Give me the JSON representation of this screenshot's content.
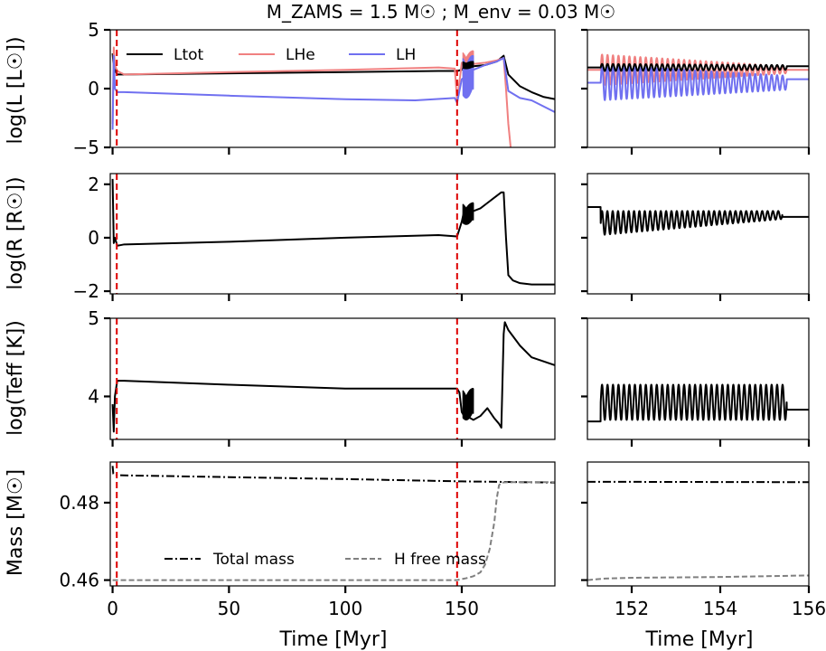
{
  "figure": {
    "title": "M_ZAMS = 1.5 M☉ ; M_env = 0.03 M☉",
    "xlabel": "Time [Myr]"
  },
  "panel_labels": {
    "lum": "log(L [L☉])",
    "rad": "log(R [R☉])",
    "teff": "log(Teff [K])",
    "mass": "Mass [M☉]"
  },
  "ticks": {
    "x_left": [
      "0",
      "50",
      "100",
      "150"
    ],
    "x_right": [
      "152",
      "154",
      "156"
    ],
    "lum": [
      "5",
      "0",
      "−5"
    ],
    "rad": [
      "2",
      "0",
      "−2"
    ],
    "teff": [
      "5",
      "4"
    ],
    "mass": [
      "0.48",
      "0.46"
    ]
  },
  "legend_lum": {
    "total": "Ltot",
    "helium": "LHe",
    "hydrogen": "LH"
  },
  "legend_mass": {
    "total": "Total mass",
    "hfree": "H free mass"
  },
  "colors": {
    "total": "#000000",
    "helium": "#f08080",
    "hydrogen": "#7070f0",
    "marker": "#dd0000",
    "hfree": "#808080"
  },
  "chart_data": [
    {
      "type": "line",
      "panel": "luminosity-full",
      "xlim": [
        -1,
        190
      ],
      "ylim": [
        -5,
        5
      ],
      "series": [
        {
          "name": "Ltot",
          "x": [
            0,
            0.5,
            1.5,
            2,
            5,
            50,
            100,
            140,
            148,
            150,
            151,
            153,
            155,
            160,
            165,
            168,
            170,
            175,
            180,
            185,
            190
          ],
          "y": [
            3.0,
            1.8,
            1.4,
            1.2,
            1.2,
            1.3,
            1.4,
            1.5,
            1.5,
            1.6,
            1.9,
            2.1,
            1.9,
            2.0,
            2.3,
            2.8,
            1.2,
            0.2,
            -0.3,
            -0.7,
            -0.9
          ]
        },
        {
          "name": "LHe",
          "x": [
            0,
            0.5,
            1,
            2,
            5,
            50,
            100,
            140,
            147,
            148,
            150,
            155,
            160,
            165,
            168,
            169,
            170,
            171
          ],
          "y": [
            -3.0,
            3.5,
            2.0,
            1.5,
            1.2,
            1.4,
            1.6,
            1.8,
            1.7,
            -1.0,
            2.2,
            2.1,
            2.2,
            2.4,
            2.6,
            0.0,
            -3.0,
            -5.0
          ]
        },
        {
          "name": "LH",
          "x": [
            0,
            0.5,
            1,
            2,
            5,
            50,
            100,
            130,
            147,
            148,
            150,
            155,
            160,
            165,
            168,
            170,
            175,
            180,
            190
          ],
          "y": [
            -3.5,
            2.8,
            0.0,
            -0.3,
            -0.3,
            -0.6,
            -0.9,
            -1.0,
            -0.8,
            -1.2,
            0.8,
            1.6,
            2.0,
            2.3,
            2.6,
            -0.2,
            -0.8,
            -1.0,
            -2.0
          ]
        }
      ],
      "markers_x": [
        1.8,
        148
      ]
    },
    {
      "type": "line",
      "panel": "radius-full",
      "xlim": [
        -1,
        190
      ],
      "ylim": [
        -2.1,
        2.4
      ],
      "series": [
        {
          "name": "R",
          "x": [
            0,
            0.5,
            1,
            2,
            5,
            50,
            100,
            140,
            148,
            150,
            151,
            153,
            155,
            158,
            161,
            164,
            167,
            168,
            169,
            170,
            172,
            175,
            180,
            190
          ],
          "y": [
            2.2,
            -0.2,
            0.0,
            -0.3,
            -0.25,
            -0.15,
            0.0,
            0.1,
            0.05,
            0.6,
            1.0,
            1.1,
            1.0,
            1.1,
            1.3,
            1.5,
            1.7,
            1.7,
            0.0,
            -1.4,
            -1.6,
            -1.7,
            -1.75,
            -1.75
          ]
        }
      ],
      "markers_x": [
        1.8,
        148
      ]
    },
    {
      "type": "line",
      "panel": "teff-full",
      "xlim": [
        -1,
        190
      ],
      "ylim": [
        3.45,
        5.0
      ],
      "series": [
        {
          "name": "Teff",
          "x": [
            0,
            0.5,
            1,
            2,
            5,
            50,
            100,
            140,
            148,
            149,
            150,
            151,
            152,
            155,
            158,
            161,
            164,
            166,
            167,
            168,
            168.5,
            170,
            175,
            180,
            190
          ],
          "y": [
            3.9,
            3.55,
            4.0,
            4.2,
            4.2,
            4.15,
            4.1,
            4.1,
            4.1,
            4.05,
            3.8,
            3.75,
            3.75,
            3.7,
            3.75,
            3.85,
            3.72,
            3.65,
            3.6,
            4.8,
            4.95,
            4.85,
            4.65,
            4.5,
            4.4
          ]
        }
      ],
      "markers_x": [
        1.8,
        148
      ]
    },
    {
      "type": "line",
      "panel": "mass-full",
      "xlim": [
        -1,
        190
      ],
      "ylim": [
        0.4585,
        0.4905
      ],
      "series": [
        {
          "name": "Total mass",
          "x": [
            0,
            0.3,
            1,
            50,
            100,
            150,
            190
          ],
          "y": [
            0.4895,
            0.4875,
            0.4871,
            0.4866,
            0.4861,
            0.4855,
            0.4852
          ]
        },
        {
          "name": "H free mass",
          "x": [
            0,
            50,
            100,
            148,
            152,
            155,
            158,
            160,
            162,
            164,
            165,
            166,
            167,
            170,
            190
          ],
          "y": [
            0.46,
            0.46,
            0.46,
            0.46,
            0.4605,
            0.461,
            0.462,
            0.464,
            0.468,
            0.475,
            0.481,
            0.4845,
            0.4852,
            0.4853,
            0.4853
          ]
        }
      ],
      "markers_x": [
        1.8,
        148
      ]
    },
    {
      "type": "line",
      "panel": "luminosity-zoom",
      "xlim": [
        151,
        156
      ],
      "ylim": [
        -5,
        5
      ],
      "oscillation": {
        "start": 151.3,
        "end": 155.5,
        "cycles": 34,
        "Ltot": {
          "base": 1.8,
          "amp_start": 0.3,
          "amp_end": 0.2,
          "end_value": 1.9
        },
        "LHe": {
          "base": 1.6,
          "amp_start": 1.3,
          "amp_end": 0.3,
          "end_value": 1.6
        },
        "LH": {
          "base": 0.5,
          "amp_start": 1.5,
          "amp_end": 0.6,
          "end_value": 0.8
        }
      }
    },
    {
      "type": "line",
      "panel": "radius-zoom",
      "xlim": [
        151,
        156
      ],
      "ylim": [
        -2.1,
        2.4
      ],
      "oscillation": {
        "start": 151.3,
        "end": 155.4,
        "cycles": 34,
        "pre_value": 1.15,
        "upper": 1.0,
        "lower_start": 0.1,
        "lower_end": 0.7,
        "end_value": 0.78
      }
    },
    {
      "type": "line",
      "panel": "teff-zoom",
      "xlim": [
        151,
        156
      ],
      "ylim": [
        3.45,
        5.0
      ],
      "oscillation": {
        "start": 151.3,
        "end": 155.5,
        "cycles": 34,
        "pre_value": 3.68,
        "upper": 4.15,
        "lower": 3.7,
        "end_value": 3.83
      }
    },
    {
      "type": "line",
      "panel": "mass-zoom",
      "xlim": [
        151,
        156
      ],
      "ylim": [
        0.4585,
        0.4905
      ],
      "series": [
        {
          "name": "Total mass",
          "x": [
            151,
            156
          ],
          "y": [
            0.4854,
            0.4853
          ]
        },
        {
          "name": "H free mass",
          "x": [
            151,
            151.4,
            152,
            154,
            156
          ],
          "y": [
            0.46,
            0.4604,
            0.4606,
            0.4608,
            0.4612
          ]
        }
      ]
    }
  ]
}
